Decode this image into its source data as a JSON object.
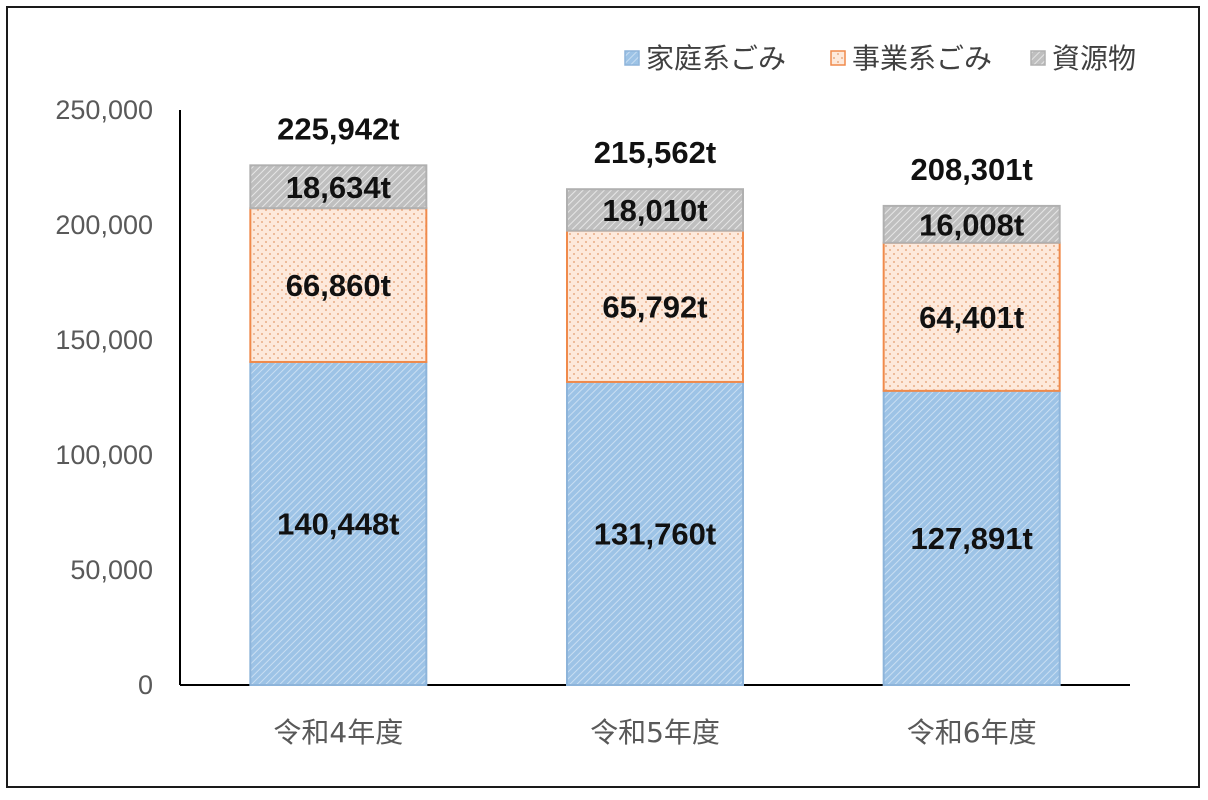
{
  "chart_data": {
    "type": "bar",
    "stacked": true,
    "categories": [
      "令和4年度",
      "令和5年度",
      "令和6年度"
    ],
    "series": [
      {
        "name": "家庭系ごみ",
        "values": [
          140448,
          131760,
          127891
        ],
        "labels": [
          "140,448t",
          "131,760t",
          "127,891t"
        ],
        "color": "#9dc3e6",
        "pattern": "diagonal"
      },
      {
        "name": "事業系ごみ",
        "values": [
          66860,
          65792,
          64401
        ],
        "labels": [
          "66,860t",
          "65,792t",
          "64,401t"
        ],
        "color": "#f4b183",
        "pattern": "dots"
      },
      {
        "name": "資源物",
        "values": [
          18634,
          18010,
          16008
        ],
        "labels": [
          "18,634t",
          "18,010t",
          "16,008t"
        ],
        "color": "#a6a6a6",
        "pattern": "diagonal"
      }
    ],
    "totals": [
      225942,
      215562,
      208301
    ],
    "total_labels": [
      "225,942t",
      "215,562t",
      "208,301t"
    ],
    "yticks": [
      "0",
      "50,000",
      "100,000",
      "150,000",
      "200,000",
      "250,000"
    ],
    "ylim": [
      0,
      250000
    ],
    "ytick_step": 50000,
    "grid": false,
    "legend_position": "top-right"
  }
}
